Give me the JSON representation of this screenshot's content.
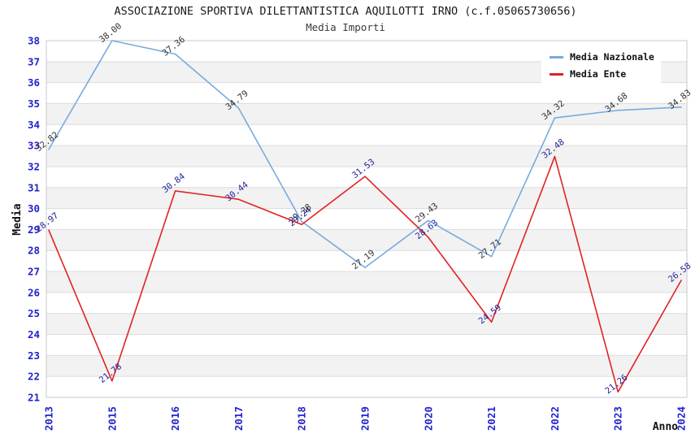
{
  "header": {
    "title": "ASSOCIAZIONE SPORTIVA DILETTANTISTICA AQUILOTTI IRNO (c.f.05065730656)",
    "subtitle": "Media Importi"
  },
  "chart_data": {
    "type": "line",
    "title": "Media Importi",
    "xlabel": "Anno",
    "ylabel": "Media",
    "categories": [
      "2013",
      "2015",
      "2016",
      "2017",
      "2018",
      "2019",
      "2020",
      "2021",
      "2022",
      "2023",
      "2024"
    ],
    "series": [
      {
        "name": "Media Nazionale",
        "color": "#76abdf",
        "label_color": "#303030",
        "values": [
          32.82,
          38.0,
          37.36,
          34.79,
          29.38,
          27.19,
          29.43,
          27.71,
          34.32,
          34.68,
          34.83
        ]
      },
      {
        "name": "Media Ente",
        "color": "#e02222",
        "label_color": "#222299",
        "values": [
          28.97,
          21.78,
          30.84,
          30.44,
          29.24,
          31.53,
          28.63,
          24.59,
          32.48,
          21.26,
          26.58
        ]
      }
    ],
    "ylim": [
      21,
      38
    ],
    "ytick_step": 1,
    "grid": "horizontal-bands",
    "legend_position": "top-right",
    "point_labels": "values shown with 2 decimals, rotated"
  },
  "style_colors": {
    "tick_text": "#2222cc",
    "band_gray": "#f2f2f2",
    "gridline": "#dcdcdc",
    "plot_border": "#c8c8c8",
    "axis_title": "#111111"
  }
}
